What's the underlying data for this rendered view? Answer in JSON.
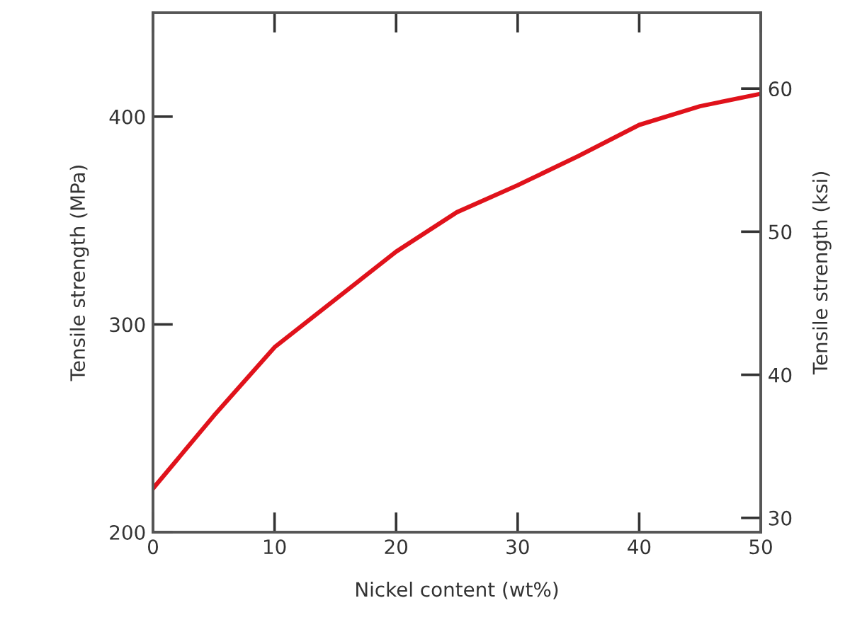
{
  "chart_data": {
    "type": "line",
    "xlabel": "Nickel content (wt%)",
    "ylabel": "Tensile strength (MPa)",
    "y2label": "Tensile strength (ksi)",
    "x": [
      0,
      5,
      10,
      15,
      20,
      25,
      30,
      35,
      40,
      45,
      50
    ],
    "series": [
      {
        "color": "#e0121b",
        "values": [
          221,
          256,
          289,
          312,
          335,
          354,
          367,
          381,
          396,
          405,
          411
        ]
      }
    ],
    "xlim": [
      0,
      50
    ],
    "xticks": [
      0,
      10,
      20,
      30,
      40,
      50
    ],
    "ylim": [
      200,
      450
    ],
    "yticks": [
      200,
      300,
      400
    ],
    "y2lim": [
      29.0,
      65.3
    ],
    "y2ticks": [
      30,
      40,
      50,
      60
    ],
    "grid": false,
    "legend": false,
    "marker": "none",
    "line_style": "solid"
  }
}
